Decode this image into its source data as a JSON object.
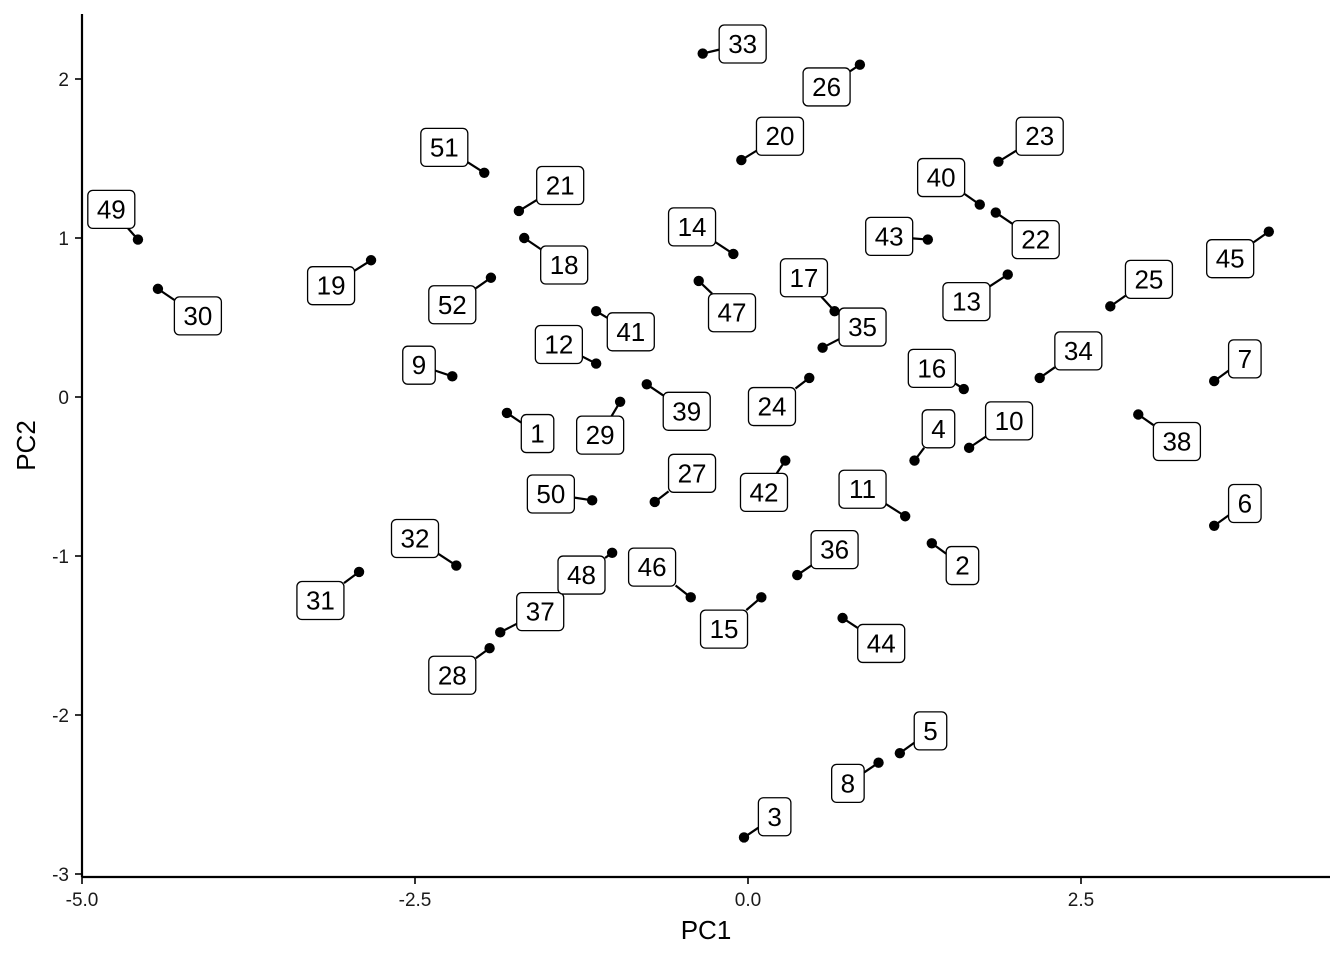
{
  "chart_data": {
    "type": "scatter",
    "xlabel": "PC1",
    "ylabel": "PC2",
    "xlim": [
      -5.0,
      4.35
    ],
    "ylim": [
      -3.0,
      2.42
    ],
    "x_ticks": [
      -5.0,
      -2.5,
      0.0,
      2.5
    ],
    "x_tick_labels": [
      "-5.0",
      "-2.5",
      "0.0",
      "2.5"
    ],
    "y_ticks": [
      -3,
      -2,
      -1,
      0,
      1,
      2
    ],
    "y_tick_labels": [
      "-3",
      "-2",
      "-1",
      "0",
      "1",
      "2"
    ],
    "grid": false,
    "legend": "none",
    "points": [
      {
        "label": "1",
        "x": -1.81,
        "y": -0.1,
        "lx": -1.58,
        "ly": -0.23
      },
      {
        "label": "2",
        "x": 1.38,
        "y": -0.92,
        "lx": 1.61,
        "ly": -1.06
      },
      {
        "label": "3",
        "x": -0.03,
        "y": -2.77,
        "lx": 0.2,
        "ly": -2.64
      },
      {
        "label": "4",
        "x": 1.25,
        "y": -0.4,
        "lx": 1.43,
        "ly": -0.2
      },
      {
        "label": "5",
        "x": 1.14,
        "y": -2.24,
        "lx": 1.37,
        "ly": -2.1
      },
      {
        "label": "6",
        "x": 3.5,
        "y": -0.81,
        "lx": 3.73,
        "ly": -0.67
      },
      {
        "label": "7",
        "x": 3.5,
        "y": 0.1,
        "lx": 3.73,
        "ly": 0.24
      },
      {
        "label": "8",
        "x": 0.98,
        "y": -2.3,
        "lx": 0.75,
        "ly": -2.43
      },
      {
        "label": "9",
        "x": -2.22,
        "y": 0.13,
        "lx": -2.47,
        "ly": 0.2
      },
      {
        "label": "10",
        "x": 1.66,
        "y": -0.32,
        "lx": 1.96,
        "ly": -0.15
      },
      {
        "label": "11",
        "x": 1.18,
        "y": -0.75,
        "lx": 0.86,
        "ly": -0.58
      },
      {
        "label": "12",
        "x": -1.14,
        "y": 0.21,
        "lx": -1.42,
        "ly": 0.33
      },
      {
        "label": "13",
        "x": 1.95,
        "y": 0.77,
        "lx": 1.64,
        "ly": 0.6
      },
      {
        "label": "14",
        "x": -0.11,
        "y": 0.9,
        "lx": -0.42,
        "ly": 1.07
      },
      {
        "label": "15",
        "x": 0.1,
        "y": -1.26,
        "lx": -0.18,
        "ly": -1.46
      },
      {
        "label": "16",
        "x": 1.62,
        "y": 0.05,
        "lx": 1.38,
        "ly": 0.18
      },
      {
        "label": "17",
        "x": 0.65,
        "y": 0.54,
        "lx": 0.42,
        "ly": 0.75
      },
      {
        "label": "18",
        "x": -1.68,
        "y": 1.0,
        "lx": -1.38,
        "ly": 0.83
      },
      {
        "label": "19",
        "x": -2.83,
        "y": 0.86,
        "lx": -3.13,
        "ly": 0.7
      },
      {
        "label": "20",
        "x": -0.05,
        "y": 1.49,
        "lx": 0.24,
        "ly": 1.64
      },
      {
        "label": "21",
        "x": -1.72,
        "y": 1.17,
        "lx": -1.41,
        "ly": 1.33
      },
      {
        "label": "22",
        "x": 1.86,
        "y": 1.16,
        "lx": 2.16,
        "ly": 0.99
      },
      {
        "label": "23",
        "x": 1.88,
        "y": 1.48,
        "lx": 2.19,
        "ly": 1.64
      },
      {
        "label": "24",
        "x": 0.46,
        "y": 0.12,
        "lx": 0.18,
        "ly": -0.06
      },
      {
        "label": "25",
        "x": 2.72,
        "y": 0.57,
        "lx": 3.01,
        "ly": 0.74
      },
      {
        "label": "26",
        "x": 0.84,
        "y": 2.09,
        "lx": 0.59,
        "ly": 1.95
      },
      {
        "label": "27",
        "x": -0.7,
        "y": -0.66,
        "lx": -0.42,
        "ly": -0.48
      },
      {
        "label": "28",
        "x": -1.94,
        "y": -1.58,
        "lx": -2.22,
        "ly": -1.75
      },
      {
        "label": "29",
        "x": -0.96,
        "y": -0.03,
        "lx": -1.11,
        "ly": -0.24
      },
      {
        "label": "30",
        "x": -4.43,
        "y": 0.68,
        "lx": -4.13,
        "ly": 0.51
      },
      {
        "label": "31",
        "x": -2.92,
        "y": -1.1,
        "lx": -3.21,
        "ly": -1.28
      },
      {
        "label": "32",
        "x": -2.19,
        "y": -1.06,
        "lx": -2.5,
        "ly": -0.89
      },
      {
        "label": "33",
        "x": -0.34,
        "y": 2.16,
        "lx": -0.04,
        "ly": 2.22
      },
      {
        "label": "34",
        "x": 2.19,
        "y": 0.12,
        "lx": 2.48,
        "ly": 0.29
      },
      {
        "label": "35",
        "x": 0.56,
        "y": 0.31,
        "lx": 0.86,
        "ly": 0.44
      },
      {
        "label": "36",
        "x": 0.37,
        "y": -1.12,
        "lx": 0.65,
        "ly": -0.96
      },
      {
        "label": "37",
        "x": -1.86,
        "y": -1.48,
        "lx": -1.56,
        "ly": -1.35
      },
      {
        "label": "38",
        "x": 2.93,
        "y": -0.11,
        "lx": 3.22,
        "ly": -0.28
      },
      {
        "label": "39",
        "x": -0.76,
        "y": 0.08,
        "lx": -0.46,
        "ly": -0.09
      },
      {
        "label": "40",
        "x": 1.74,
        "y": 1.21,
        "lx": 1.45,
        "ly": 1.38
      },
      {
        "label": "41",
        "x": -1.14,
        "y": 0.54,
        "lx": -0.88,
        "ly": 0.41
      },
      {
        "label": "42",
        "x": 0.28,
        "y": -0.4,
        "lx": 0.12,
        "ly": -0.6
      },
      {
        "label": "43",
        "x": 1.35,
        "y": 0.99,
        "lx": 1.06,
        "ly": 1.01
      },
      {
        "label": "44",
        "x": 0.71,
        "y": -1.39,
        "lx": 1.0,
        "ly": -1.55
      },
      {
        "label": "45",
        "x": 3.91,
        "y": 1.04,
        "lx": 3.62,
        "ly": 0.87
      },
      {
        "label": "46",
        "x": -0.43,
        "y": -1.26,
        "lx": -0.72,
        "ly": -1.07
      },
      {
        "label": "47",
        "x": -0.37,
        "y": 0.73,
        "lx": -0.12,
        "ly": 0.53
      },
      {
        "label": "48",
        "x": -1.02,
        "y": -0.98,
        "lx": -1.25,
        "ly": -1.12
      },
      {
        "label": "49",
        "x": -4.58,
        "y": 0.99,
        "lx": -4.78,
        "ly": 1.18
      },
      {
        "label": "50",
        "x": -1.17,
        "y": -0.65,
        "lx": -1.48,
        "ly": -0.61
      },
      {
        "label": "51",
        "x": -1.98,
        "y": 1.41,
        "lx": -2.28,
        "ly": 1.57
      },
      {
        "label": "52",
        "x": -1.93,
        "y": 0.75,
        "lx": -2.22,
        "ly": 0.58
      }
    ]
  }
}
